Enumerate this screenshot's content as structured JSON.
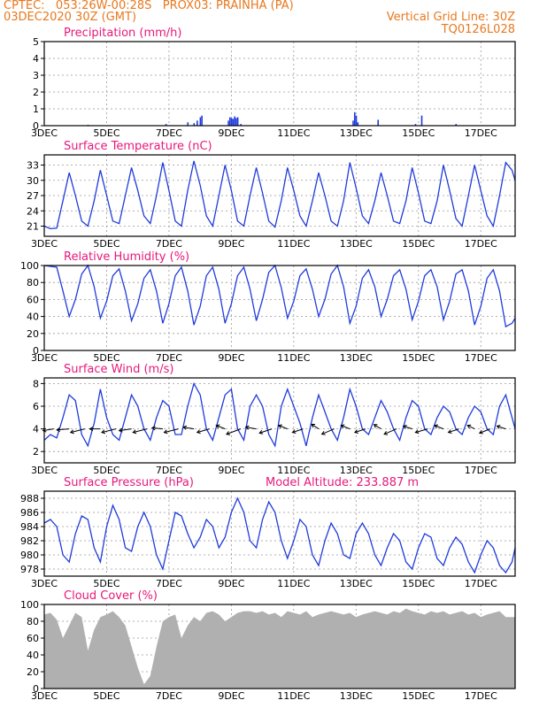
{
  "header": {
    "line1": "CPTEC:   053:26W-00:28S   PROX03: PRAINHA (PA)",
    "line2": "03DEC2020 30Z (GMT)",
    "grid_note": "Vertical Grid Line: 30Z",
    "code": "TQ0126L028"
  },
  "colors": {
    "header": "#e8781e",
    "title": "#e8187a",
    "series": "#1f3bdc",
    "cloud": "#b0b0b0",
    "arrow": "#000000"
  },
  "chart_data": [
    {
      "id": "precip",
      "type": "bar",
      "title": "Precipitation (mm/h)",
      "xticks": [
        "3DEC",
        "5DEC",
        "7DEC",
        "9DEC",
        "11DEC",
        "13DEC",
        "15DEC",
        "17DEC"
      ],
      "xrange": [
        3,
        18.1
      ],
      "ylim": [
        0,
        5
      ],
      "yticks": [
        "0",
        "1",
        "2",
        "3",
        "4",
        "5"
      ],
      "x": [
        4.4,
        6.9,
        7.6,
        7.8,
        7.9,
        8.0,
        8.05,
        8.9,
        8.95,
        9.0,
        9.05,
        9.1,
        9.15,
        9.2,
        9.3,
        12.9,
        12.95,
        13.0,
        13.05,
        13.7,
        14.9,
        15.1,
        16.2
      ],
      "values": [
        0.05,
        0.1,
        0.2,
        0.15,
        0.3,
        0.5,
        0.6,
        0.3,
        0.5,
        0.45,
        0.4,
        0.55,
        0.45,
        0.5,
        0.1,
        0.3,
        0.8,
        0.6,
        0.2,
        0.35,
        0.1,
        0.6,
        0.1
      ]
    },
    {
      "id": "temp",
      "type": "line",
      "title": "Surface Temperature (nC)",
      "xticks": [
        "3DEC",
        "5DEC",
        "7DEC",
        "9DEC",
        "11DEC",
        "13DEC",
        "15DEC",
        "17DEC"
      ],
      "xrange": [
        3,
        18.1
      ],
      "ylim": [
        19,
        35
      ],
      "yticks": [
        "21",
        "24",
        "27",
        "30",
        "33"
      ],
      "ytick_values": [
        21,
        24,
        27,
        30,
        33
      ],
      "x": [
        3.0,
        3.2,
        3.4,
        3.6,
        3.8,
        4.0,
        4.2,
        4.4,
        4.6,
        4.8,
        5.0,
        5.2,
        5.4,
        5.6,
        5.8,
        6.0,
        6.2,
        6.4,
        6.6,
        6.8,
        7.0,
        7.2,
        7.4,
        7.6,
        7.8,
        8.0,
        8.2,
        8.4,
        8.6,
        8.8,
        9.0,
        9.2,
        9.4,
        9.6,
        9.8,
        10.0,
        10.2,
        10.4,
        10.6,
        10.8,
        11.0,
        11.2,
        11.4,
        11.6,
        11.8,
        12.0,
        12.2,
        12.4,
        12.6,
        12.8,
        13.0,
        13.2,
        13.4,
        13.6,
        13.8,
        14.0,
        14.2,
        14.4,
        14.6,
        14.8,
        15.0,
        15.2,
        15.4,
        15.6,
        15.8,
        16.0,
        16.2,
        16.4,
        16.6,
        16.8,
        17.0,
        17.2,
        17.4,
        17.6,
        17.8,
        18.0,
        18.1
      ],
      "values": [
        21,
        20.5,
        20.6,
        26,
        31.5,
        27,
        22,
        21,
        26,
        32,
        27,
        22,
        21.5,
        27,
        32.5,
        28,
        23,
        21.5,
        27,
        33.5,
        28,
        22,
        21,
        28,
        33.8,
        29,
        23,
        21,
        27,
        33,
        28,
        22,
        21,
        27,
        32.5,
        27.5,
        22,
        20.8,
        26,
        32.5,
        28,
        23,
        21,
        26,
        31.5,
        27,
        22,
        21,
        26,
        33.5,
        28.5,
        23,
        21.5,
        26,
        31.5,
        27,
        22,
        21.5,
        26,
        32.5,
        27.5,
        22,
        21.5,
        26,
        33,
        28,
        22.5,
        21,
        27,
        33,
        28,
        23,
        21,
        27,
        33.5,
        32,
        30
      ]
    },
    {
      "id": "rh",
      "type": "line",
      "title": "Relative Humidity (%)",
      "xticks": [
        "3DEC",
        "5DEC",
        "7DEC",
        "9DEC",
        "11DEC",
        "13DEC",
        "15DEC",
        "17DEC"
      ],
      "xrange": [
        3,
        18.1
      ],
      "ylim": [
        0,
        100
      ],
      "yticks": [
        "0",
        "20",
        "40",
        "60",
        "80",
        "100"
      ],
      "ytick_values": [
        0,
        20,
        40,
        60,
        80,
        100
      ],
      "x": [
        3.0,
        3.2,
        3.4,
        3.6,
        3.8,
        4.0,
        4.2,
        4.4,
        4.6,
        4.8,
        5.0,
        5.2,
        5.4,
        5.6,
        5.8,
        6.0,
        6.2,
        6.4,
        6.6,
        6.8,
        7.0,
        7.2,
        7.4,
        7.6,
        7.8,
        8.0,
        8.2,
        8.4,
        8.6,
        8.8,
        9.0,
        9.2,
        9.4,
        9.6,
        9.8,
        10.0,
        10.2,
        10.4,
        10.6,
        10.8,
        11.0,
        11.2,
        11.4,
        11.6,
        11.8,
        12.0,
        12.2,
        12.4,
        12.6,
        12.8,
        13.0,
        13.2,
        13.4,
        13.6,
        13.8,
        14.0,
        14.2,
        14.4,
        14.6,
        14.8,
        15.0,
        15.2,
        15.4,
        15.6,
        15.8,
        16.0,
        16.2,
        16.4,
        16.6,
        16.8,
        17.0,
        17.2,
        17.4,
        17.6,
        17.8,
        18.0,
        18.1
      ],
      "values": [
        100,
        99,
        98,
        70,
        40,
        60,
        90,
        100,
        75,
        38,
        58,
        88,
        96,
        70,
        35,
        55,
        85,
        95,
        70,
        32,
        55,
        88,
        98,
        70,
        30,
        52,
        88,
        98,
        72,
        32,
        55,
        88,
        98,
        72,
        35,
        60,
        92,
        100,
        74,
        38,
        58,
        88,
        96,
        72,
        40,
        60,
        90,
        100,
        75,
        32,
        52,
        85,
        95,
        75,
        40,
        60,
        88,
        95,
        72,
        36,
        58,
        88,
        95,
        75,
        36,
        58,
        90,
        95,
        70,
        30,
        52,
        85,
        95,
        70,
        28,
        32,
        38
      ]
    },
    {
      "id": "wind",
      "type": "line",
      "title": "Surface Wind (m/s)",
      "xticks": [
        "3DEC",
        "5DEC",
        "7DEC",
        "9DEC",
        "11DEC",
        "13DEC",
        "15DEC",
        "17DEC"
      ],
      "xrange": [
        3,
        18.1
      ],
      "ylim": [
        1,
        8.5
      ],
      "yticks": [
        "2",
        "4",
        "6",
        "8"
      ],
      "ytick_values": [
        2,
        4,
        6,
        8
      ],
      "x": [
        3.0,
        3.2,
        3.4,
        3.6,
        3.8,
        4.0,
        4.2,
        4.4,
        4.6,
        4.8,
        5.0,
        5.2,
        5.4,
        5.6,
        5.8,
        6.0,
        6.2,
        6.4,
        6.6,
        6.8,
        7.0,
        7.2,
        7.4,
        7.6,
        7.8,
        8.0,
        8.2,
        8.4,
        8.6,
        8.8,
        9.0,
        9.2,
        9.4,
        9.6,
        9.8,
        10.0,
        10.2,
        10.4,
        10.6,
        10.8,
        11.0,
        11.2,
        11.4,
        11.6,
        11.8,
        12.0,
        12.2,
        12.4,
        12.6,
        12.8,
        13.0,
        13.2,
        13.4,
        13.6,
        13.8,
        14.0,
        14.2,
        14.4,
        14.6,
        14.8,
        15.0,
        15.2,
        15.4,
        15.6,
        15.8,
        16.0,
        16.2,
        16.4,
        16.6,
        16.8,
        17.0,
        17.2,
        17.4,
        17.6,
        17.8,
        18.0,
        18.1
      ],
      "values": [
        3,
        3.5,
        3.2,
        5,
        7,
        6.5,
        3.5,
        2.5,
        4.5,
        7.5,
        5,
        3.5,
        3,
        5,
        7,
        6,
        4,
        3,
        5,
        6.5,
        6,
        3.5,
        3.5,
        6,
        8,
        7,
        4,
        3,
        5,
        7,
        7.5,
        4,
        3,
        6,
        7,
        6,
        3.5,
        2.5,
        6,
        7.5,
        6,
        4.5,
        2.5,
        5,
        7,
        5.5,
        4,
        3,
        5,
        7.5,
        6,
        4,
        3.5,
        5,
        6.5,
        5.5,
        4,
        3,
        5,
        6.5,
        6,
        4,
        3.5,
        5,
        6,
        5.5,
        4,
        3.5,
        5,
        6,
        5.5,
        4,
        3.5,
        6,
        7,
        5,
        4
      ],
      "vectors": {
        "x": [
          3.3,
          3.8,
          4.3,
          4.8,
          5.3,
          5.8,
          6.3,
          6.8,
          7.3,
          7.8,
          8.3,
          8.8,
          9.3,
          9.8,
          10.3,
          10.8,
          11.3,
          11.8,
          12.3,
          12.8,
          13.3,
          13.8,
          14.3,
          14.8,
          15.3,
          15.8,
          16.3,
          16.8,
          17.3,
          17.8
        ],
        "u": [
          -3,
          -3.5,
          -4,
          -3,
          -4,
          -3.5,
          -4,
          -3,
          -4,
          -3,
          -3.5,
          -2.5,
          -4,
          -3,
          -3.5,
          -2.5,
          -3,
          -2,
          -3.5,
          -2.5,
          -3,
          -2,
          -3.5,
          -2.5,
          -3.5,
          -2.5,
          -3,
          -2,
          -3,
          -2.5
        ],
        "v": [
          -0.5,
          -0.3,
          -1,
          0,
          -1,
          -0.5,
          -1,
          0.3,
          -1,
          0.5,
          -1,
          1,
          -1.5,
          0.5,
          -1.2,
          1,
          -1,
          1.3,
          -1.5,
          1,
          -1,
          1.2,
          -1.5,
          0.8,
          -1,
          1,
          -1,
          1,
          -1.2,
          0.8
        ]
      }
    },
    {
      "id": "pressure",
      "type": "line",
      "title": "Surface Pressure (hPa)",
      "annotation": "Model Altitude: 233.887 m",
      "xticks": [
        "3DEC",
        "5DEC",
        "7DEC",
        "9DEC",
        "11DEC",
        "13DEC",
        "15DEC",
        "17DEC"
      ],
      "xrange": [
        3,
        18.1
      ],
      "ylim": [
        977,
        989
      ],
      "yticks": [
        "978",
        "980",
        "982",
        "984",
        "986",
        "988"
      ],
      "ytick_values": [
        978,
        980,
        982,
        984,
        986,
        988
      ],
      "x": [
        3.0,
        3.2,
        3.4,
        3.6,
        3.8,
        4.0,
        4.2,
        4.4,
        4.6,
        4.8,
        5.0,
        5.2,
        5.4,
        5.6,
        5.8,
        6.0,
        6.2,
        6.4,
        6.6,
        6.8,
        7.0,
        7.2,
        7.4,
        7.6,
        7.8,
        8.0,
        8.2,
        8.4,
        8.6,
        8.8,
        9.0,
        9.2,
        9.4,
        9.6,
        9.8,
        10.0,
        10.2,
        10.4,
        10.6,
        10.8,
        11.0,
        11.2,
        11.4,
        11.6,
        11.8,
        12.0,
        12.2,
        12.4,
        12.6,
        12.8,
        13.0,
        13.2,
        13.4,
        13.6,
        13.8,
        14.0,
        14.2,
        14.4,
        14.6,
        14.8,
        15.0,
        15.2,
        15.4,
        15.6,
        15.8,
        16.0,
        16.2,
        16.4,
        16.6,
        16.8,
        17.0,
        17.2,
        17.4,
        17.6,
        17.8,
        18.0,
        18.1
      ],
      "values": [
        984.5,
        985,
        984,
        980,
        979,
        983,
        985.5,
        985,
        981,
        979,
        984,
        987,
        985,
        981,
        980.5,
        984,
        986,
        984,
        980,
        978,
        982,
        986,
        985.5,
        983,
        981,
        982.5,
        985,
        984,
        981,
        982.5,
        986,
        988,
        986,
        982,
        981,
        985,
        987.5,
        986,
        982,
        979.5,
        982,
        985,
        984,
        980,
        978.5,
        982,
        984.5,
        983,
        980,
        979.5,
        983,
        984.5,
        983,
        980,
        978.5,
        981,
        983,
        982,
        979,
        978,
        981,
        983,
        982.5,
        979.5,
        978.5,
        981,
        982.5,
        981.5,
        979,
        977.5,
        980,
        982,
        981,
        978.5,
        977.5,
        979,
        981
      ]
    },
    {
      "id": "cloud",
      "type": "area",
      "title": "Cloud Cover (%)",
      "xticks": [
        "3DEC",
        "5DEC",
        "7DEC",
        "9DEC",
        "11DEC",
        "13DEC",
        "15DEC",
        "17DEC"
      ],
      "xrange": [
        3,
        18.1
      ],
      "ylim": [
        0,
        100
      ],
      "yticks": [
        "0",
        "20",
        "40",
        "60",
        "80",
        "100"
      ],
      "ytick_values": [
        0,
        20,
        40,
        60,
        80,
        100
      ],
      "x": [
        3.0,
        3.2,
        3.4,
        3.6,
        3.8,
        4.0,
        4.2,
        4.4,
        4.6,
        4.8,
        5.0,
        5.2,
        5.4,
        5.6,
        5.8,
        6.0,
        6.2,
        6.4,
        6.6,
        6.8,
        7.0,
        7.2,
        7.4,
        7.6,
        7.8,
        8.0,
        8.2,
        8.4,
        8.6,
        8.8,
        9.0,
        9.2,
        9.4,
        9.6,
        9.8,
        10.0,
        10.2,
        10.4,
        10.6,
        10.8,
        11.0,
        11.2,
        11.4,
        11.6,
        11.8,
        12.0,
        12.2,
        12.4,
        12.6,
        12.8,
        13.0,
        13.2,
        13.4,
        13.6,
        13.8,
        14.0,
        14.2,
        14.4,
        14.6,
        14.8,
        15.0,
        15.2,
        15.4,
        15.6,
        15.8,
        16.0,
        16.2,
        16.4,
        16.6,
        16.8,
        17.0,
        17.2,
        17.4,
        17.6,
        17.8,
        18.0,
        18.1
      ],
      "values": [
        88,
        90,
        82,
        60,
        75,
        90,
        85,
        45,
        70,
        85,
        88,
        92,
        85,
        75,
        50,
        25,
        5,
        15,
        50,
        80,
        85,
        88,
        60,
        75,
        85,
        80,
        90,
        92,
        88,
        80,
        85,
        90,
        92,
        92,
        90,
        92,
        88,
        90,
        85,
        92,
        90,
        88,
        92,
        85,
        88,
        90,
        92,
        90,
        88,
        90,
        85,
        88,
        90,
        92,
        90,
        88,
        92,
        90,
        95,
        92,
        90,
        88,
        92,
        90,
        92,
        88,
        90,
        92,
        88,
        90,
        85,
        88,
        90,
        92,
        85,
        85,
        85
      ]
    }
  ]
}
